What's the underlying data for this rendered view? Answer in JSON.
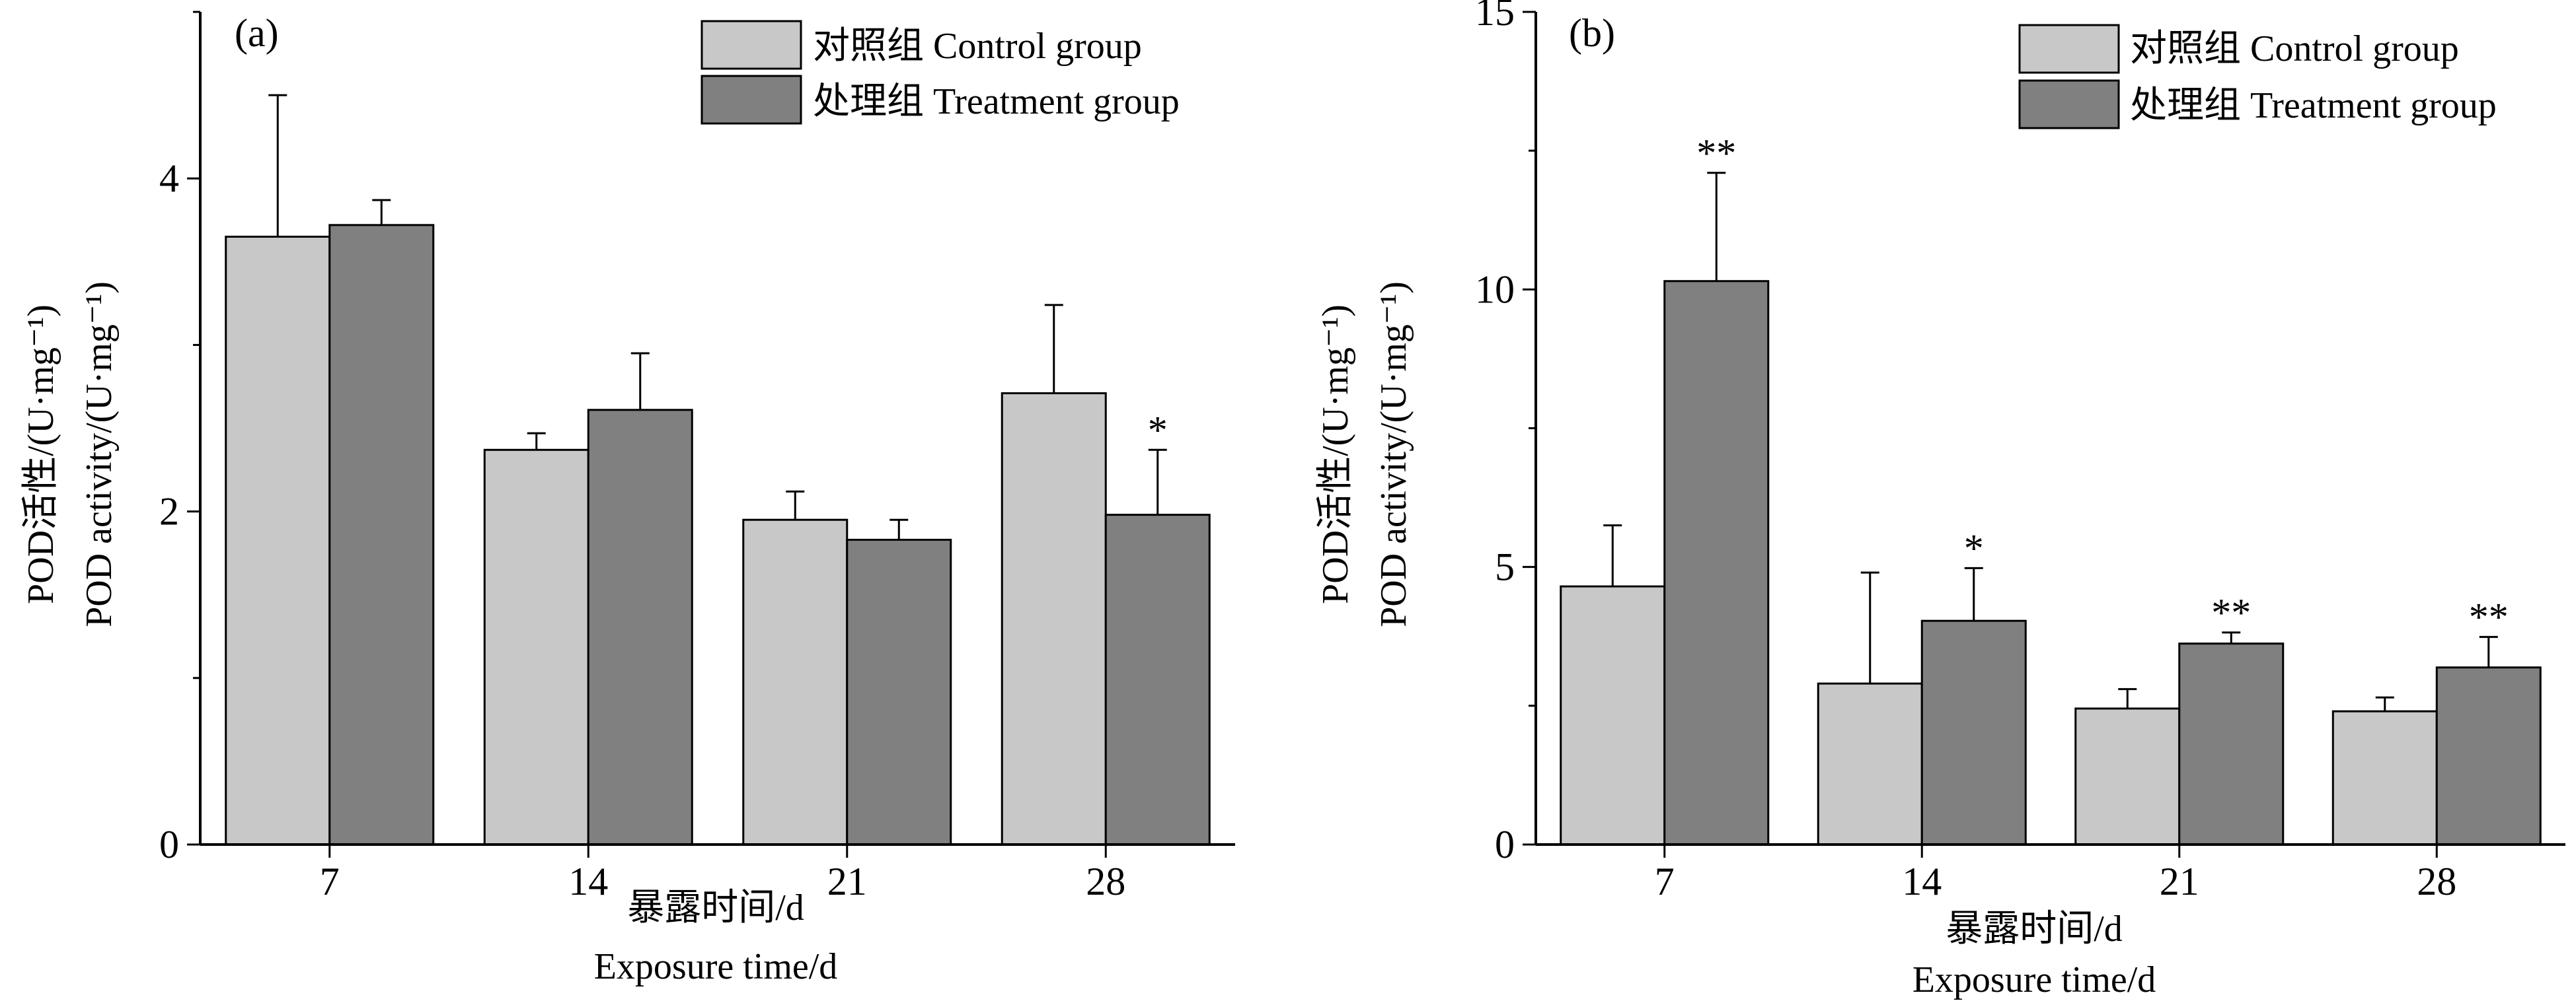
{
  "colors": {
    "control": "#c8c8c8",
    "treatment": "#808080",
    "axis": "#000000"
  },
  "chart_data": [
    {
      "panel_label": "(a)",
      "type": "bar",
      "categories": [
        "7",
        "14",
        "21",
        "28"
      ],
      "xlabel_cn": "暴露时间/d",
      "xlabel_en": "Exposure time/d",
      "ylabel_cn": "POD活性/(U·mg⁻¹)",
      "ylabel_en": "POD activity/(U·mg⁻¹)",
      "ylim": [
        0,
        5
      ],
      "yticks": [
        0,
        2,
        4
      ],
      "legend": "top-right",
      "series": [
        {
          "name": "对照组 Control group",
          "key": "control",
          "values": [
            3.65,
            2.37,
            1.95,
            2.71
          ],
          "errors": [
            0.85,
            0.1,
            0.17,
            0.53
          ],
          "sig": [
            "",
            "",
            "",
            ""
          ]
        },
        {
          "name": "处理组 Treatment group",
          "key": "treatment",
          "values": [
            3.72,
            2.61,
            1.83,
            1.98
          ],
          "errors": [
            0.15,
            0.34,
            0.12,
            0.39
          ],
          "sig": [
            "",
            "",
            "",
            "*"
          ]
        }
      ]
    },
    {
      "panel_label": "(b)",
      "type": "bar",
      "categories": [
        "7",
        "14",
        "21",
        "28"
      ],
      "xlabel_cn": "暴露时间/d",
      "xlabel_en": "Exposure time/d",
      "ylabel_cn": "POD活性/(U·mg⁻¹)",
      "ylabel_en": "POD activity/(U·mg⁻¹)",
      "ylim": [
        0,
        15
      ],
      "yticks": [
        0,
        5,
        10,
        15
      ],
      "legend": "top-right",
      "series": [
        {
          "name": "对照组 Control group",
          "key": "control",
          "values": [
            4.65,
            2.9,
            2.45,
            2.4
          ],
          "errors": [
            1.1,
            2.0,
            0.35,
            0.25
          ],
          "sig": [
            "",
            "",
            "",
            ""
          ]
        },
        {
          "name": "处理组 Treatment group",
          "key": "treatment",
          "values": [
            10.15,
            4.03,
            3.62,
            3.19
          ],
          "errors": [
            1.95,
            0.95,
            0.2,
            0.55
          ],
          "sig": [
            "**",
            "*",
            "**",
            "**"
          ]
        }
      ]
    }
  ]
}
